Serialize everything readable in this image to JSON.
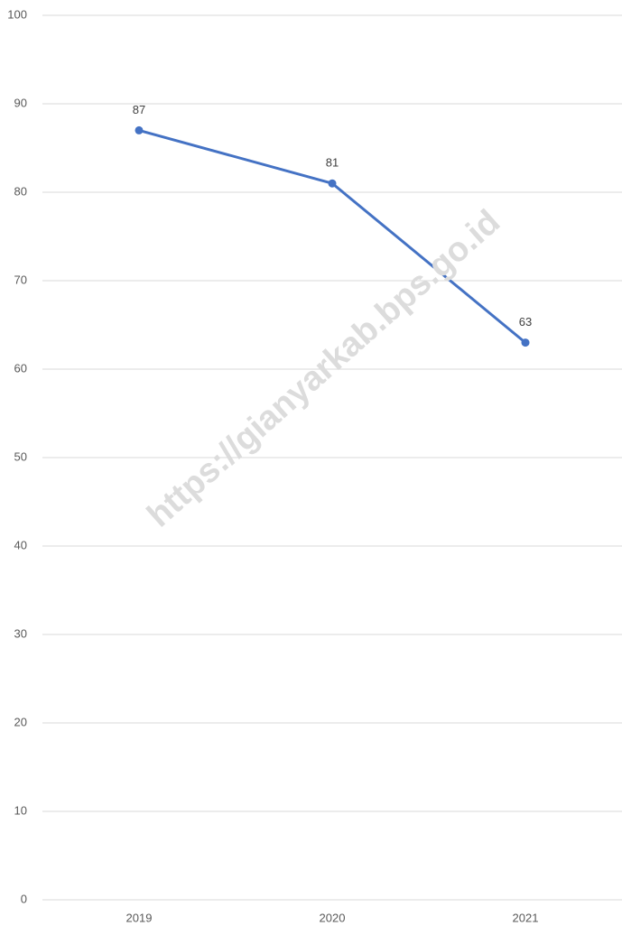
{
  "chart_data": {
    "type": "line",
    "categories": [
      "2019",
      "2020",
      "2021"
    ],
    "series": [
      {
        "color": "#4472c4",
        "values": [
          87,
          81,
          63
        ]
      }
    ],
    "ylim": [
      0,
      100
    ],
    "yticks": [
      0,
      10,
      20,
      30,
      40,
      50,
      60,
      70,
      80,
      90,
      100
    ],
    "grid": true,
    "data_labels": true,
    "watermark": "https://gianyarkab.bps.go.id"
  }
}
